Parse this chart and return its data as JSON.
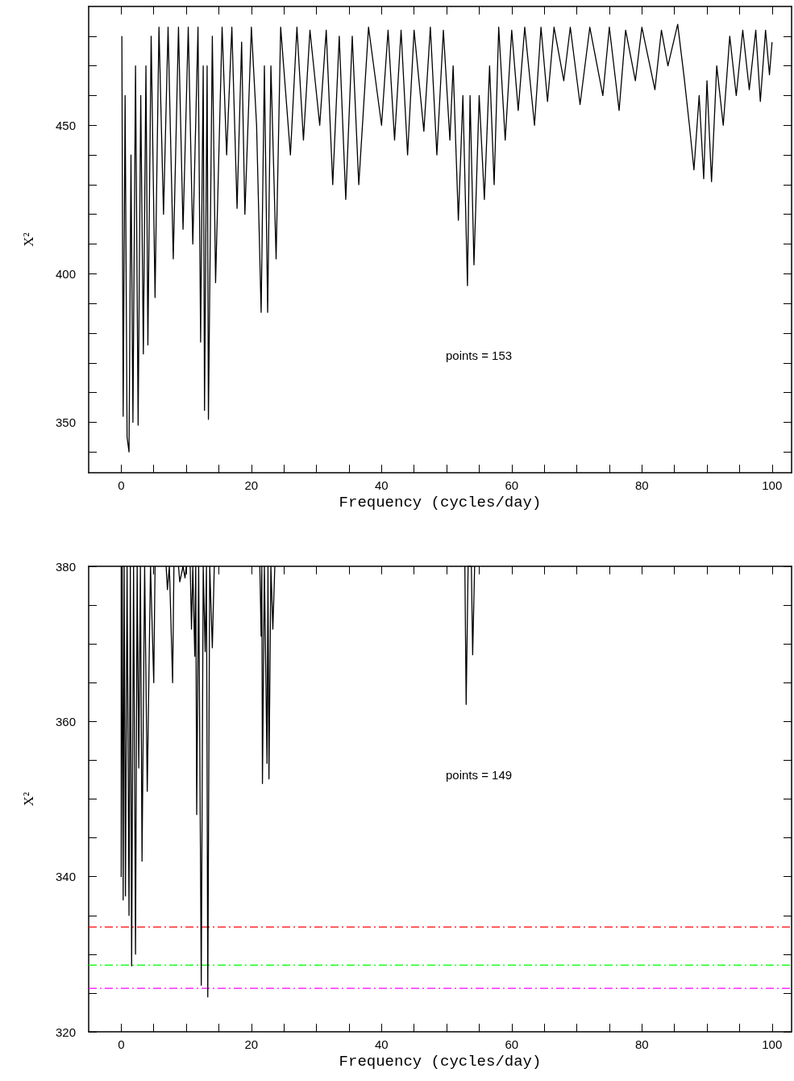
{
  "chart_data": [
    {
      "type": "line",
      "ylabel": "X²",
      "xlabel": "Frequency (cycles/day)",
      "annotations": [
        "points = 153"
      ],
      "xlim": [
        -5,
        103
      ],
      "ylim": [
        333,
        490
      ],
      "xticks": [
        0,
        {
          "value": 5,
          "label": null
        },
        {
          "value": 10,
          "label": null
        },
        {
          "value": 15,
          "label": null
        },
        20,
        {
          "value": 25,
          "label": null
        },
        {
          "value": 30,
          "label": null
        },
        {
          "value": 35,
          "label": null
        },
        40,
        {
          "value": 45,
          "label": null
        },
        {
          "value": 50,
          "label": null
        },
        {
          "value": 55,
          "label": null
        },
        60,
        {
          "value": 65,
          "label": null
        },
        {
          "value": 70,
          "label": null
        },
        {
          "value": 75,
          "label": null
        },
        80,
        {
          "value": 85,
          "label": null
        },
        {
          "value": 90,
          "label": null
        },
        {
          "value": 95,
          "label": null
        },
        100
      ],
      "yticks": [
        {
          "value": 340,
          "label": null
        },
        350,
        {
          "value": 360,
          "label": null
        },
        {
          "value": 370,
          "label": null
        },
        {
          "value": 380,
          "label": null
        },
        {
          "value": 390,
          "label": null
        },
        400,
        {
          "value": 410,
          "label": null
        },
        {
          "value": 420,
          "label": null
        },
        {
          "value": 430,
          "label": null
        },
        {
          "value": 440,
          "label": null
        },
        450,
        {
          "value": 460,
          "label": null
        },
        {
          "value": 470,
          "label": null
        },
        {
          "value": 480,
          "label": null
        }
      ],
      "grid": false,
      "marker": "none",
      "line_style": "solid",
      "series": [
        {
          "color": "#000000",
          "x": [
            0.1,
            0.3,
            0.6,
            0.9,
            1.2,
            1.5,
            1.8,
            2.2,
            2.6,
            3.0,
            3.4,
            3.8,
            4.1,
            4.6,
            5.2,
            5.8,
            6.5,
            7.2,
            8.0,
            8.8,
            9.5,
            10.3,
            11.0,
            11.8,
            12.2,
            12.6,
            12.8,
            13.2,
            13.4,
            14.0,
            14.5,
            15.5,
            16.2,
            17.0,
            17.8,
            18.5,
            19.0,
            20.0,
            20.8,
            21.5,
            22.0,
            22.5,
            23.0,
            23.8,
            24.5,
            26.0,
            27.0,
            28.0,
            29.0,
            30.5,
            31.5,
            32.5,
            33.5,
            34.5,
            35.5,
            36.5,
            38.0,
            40.0,
            41.0,
            42.0,
            43.0,
            44.0,
            45.0,
            46.5,
            47.5,
            48.5,
            49.5,
            50.5,
            51.0,
            51.8,
            52.5,
            53.2,
            53.6,
            54.2,
            55.0,
            55.8,
            56.6,
            57.3,
            58.0,
            59.0,
            60.0,
            61.0,
            62.0,
            63.5,
            64.5,
            65.5,
            66.5,
            68.0,
            69.0,
            70.5,
            72.0,
            74.0,
            75.0,
            76.5,
            77.5,
            79.0,
            80.0,
            82.0,
            83.0,
            84.0,
            85.5,
            86.5,
            87.3,
            88.0,
            88.8,
            89.5,
            90.0,
            90.7,
            91.5,
            92.5,
            93.5,
            94.5,
            95.5,
            96.5,
            97.5,
            98.2,
            99.0,
            99.6,
            100.0
          ],
          "values": [
            480,
            352,
            460,
            345,
            340,
            440,
            350,
            470,
            349,
            460,
            373,
            470,
            376,
            480,
            392,
            483,
            420,
            483,
            405,
            483,
            415,
            483,
            410,
            483,
            377,
            470,
            354,
            470,
            351,
            480,
            397,
            483,
            440,
            483,
            422,
            478,
            420,
            483,
            450,
            387,
            470,
            387,
            470,
            405,
            483,
            440,
            483,
            445,
            482,
            450,
            482,
            430,
            480,
            425,
            480,
            430,
            483,
            450,
            482,
            445,
            482,
            440,
            482,
            448,
            483,
            440,
            482,
            445,
            470,
            418,
            460,
            396,
            460,
            403,
            460,
            425,
            470,
            430,
            483,
            445,
            482,
            455,
            483,
            450,
            483,
            458,
            483,
            465,
            483,
            457,
            483,
            460,
            483,
            455,
            482,
            465,
            483,
            462,
            482,
            470,
            484,
            466,
            450,
            435,
            460,
            432,
            465,
            431,
            470,
            450,
            480,
            460,
            482,
            462,
            482,
            458,
            482,
            467,
            478
          ]
        }
      ]
    },
    {
      "type": "line",
      "ylabel": "X²",
      "xlabel": "Frequency (cycles/day)",
      "annotations": [
        "points = 149"
      ],
      "xlim": [
        -5,
        103
      ],
      "ylim": [
        320,
        380
      ],
      "xticks": [
        0,
        {
          "value": 5,
          "label": null
        },
        {
          "value": 10,
          "label": null
        },
        {
          "value": 15,
          "label": null
        },
        20,
        {
          "value": 25,
          "label": null
        },
        {
          "value": 30,
          "label": null
        },
        {
          "value": 35,
          "label": null
        },
        40,
        {
          "value": 45,
          "label": null
        },
        {
          "value": 50,
          "label": null
        },
        {
          "value": 55,
          "label": null
        },
        60,
        {
          "value": 65,
          "label": null
        },
        {
          "value": 70,
          "label": null
        },
        {
          "value": 75,
          "label": null
        },
        80,
        {
          "value": 85,
          "label": null
        },
        {
          "value": 90,
          "label": null
        },
        {
          "value": 95,
          "label": null
        },
        100
      ],
      "yticks": [
        320,
        {
          "value": 325,
          "label": null
        },
        {
          "value": 330,
          "label": null
        },
        {
          "value": 335,
          "label": null
        },
        340,
        {
          "value": 345,
          "label": null
        },
        {
          "value": 350,
          "label": null
        },
        {
          "value": 355,
          "label": null
        },
        360,
        {
          "value": 365,
          "label": null
        },
        {
          "value": 370,
          "label": null
        },
        {
          "value": 375,
          "label": null
        },
        380
      ],
      "grid": false,
      "marker": "none",
      "line_style": "solid",
      "ref_lines": [
        {
          "axis": "y",
          "value": 333.5,
          "color": "#ff0000",
          "line_style": "dashed"
        },
        {
          "axis": "y",
          "value": 328.6,
          "color": "#00ff00",
          "line_style": "dashed"
        },
        {
          "axis": "y",
          "value": 325.6,
          "color": "#ff00ff",
          "line_style": "dashed"
        }
      ],
      "series": [
        {
          "color": "#000000",
          "x": [
            0.0,
            0.0,
            0.15,
            0.3,
            0.45,
            0.65,
            0.9,
            1.2,
            1.4,
            1.6,
            1.9,
            2.2,
            2.45,
            2.7,
            2.95,
            3.2,
            3.6,
            4.0,
            4.5,
            5.0,
            5.2,
            5.5,
            6.9,
            7.1,
            7.4,
            7.9,
            8.1,
            8.5,
            8.8,
            9.0,
            9.5,
            9.8,
            10.0,
            10.3,
            10.6,
            10.8,
            11.0,
            11.3,
            11.45,
            11.6,
            11.9,
            12.3,
            12.6,
            12.9,
            13.1,
            13.3,
            13.6,
            14.0,
            14.3,
            20.0,
            21.3,
            21.5,
            21.6,
            21.7,
            22.0,
            22.4,
            22.55,
            22.7,
            23.0,
            23.3,
            23.6,
            40.0,
            52.8,
            53.0,
            53.3,
            53.8,
            54.0,
            54.3
          ],
          "values": [
            380,
            340,
            380,
            337,
            380,
            337.5,
            380,
            335,
            380,
            328.5,
            380,
            330,
            380,
            354,
            380,
            342,
            380,
            351,
            380,
            365,
            380,
            null,
            380,
            377,
            380,
            365,
            380,
            null,
            380,
            378,
            380,
            378.5,
            380,
            null,
            380,
            371.9,
            380,
            368.4,
            380,
            348,
            380,
            326,
            380,
            369,
            380,
            324.5,
            380,
            369.5,
            380,
            null,
            380,
            371,
            380,
            352,
            380,
            354.6,
            380,
            352.6,
            380,
            371.9,
            380,
            null,
            380,
            362.2,
            380,
            380,
            368.6,
            380
          ]
        }
      ]
    }
  ]
}
